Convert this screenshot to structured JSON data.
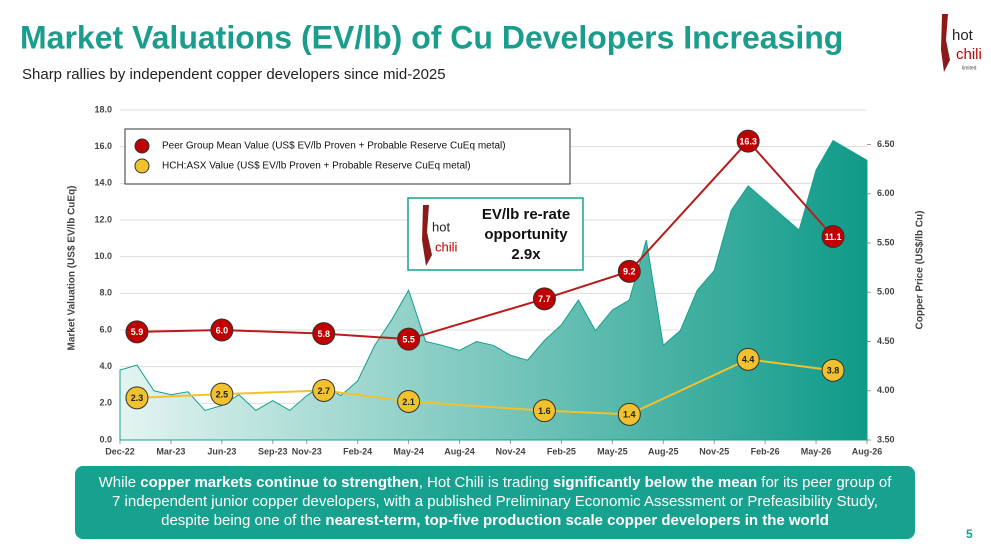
{
  "header": {
    "title": "Market Valuations (EV/lb) of Cu Developers Increasing",
    "subtitle": "Sharp rallies by independent copper developers since mid-2025",
    "logo": [
      "hot",
      "chili",
      "limited"
    ]
  },
  "chart_data": {
    "type": "line",
    "y_label": "Market Valuation (US$ EV/lb CuEq)",
    "y2_label": "Copper Price (US$/lb Cu)",
    "xlim": [
      "2022-12",
      "2026-08"
    ],
    "xticks": [
      {
        "value": "2022-12",
        "label": "Dec-22"
      },
      {
        "value": "2023-03",
        "label": "Mar-23"
      },
      {
        "value": "2023-06",
        "label": "Jun-23"
      },
      {
        "value": "2023-09",
        "label": "Sep-23"
      },
      {
        "value": "2023-11",
        "label": "Nov-23"
      },
      {
        "value": "2024-02",
        "label": "Feb-24"
      },
      {
        "value": "2024-05",
        "label": "May-24"
      },
      {
        "value": "2024-08",
        "label": "Aug-24"
      },
      {
        "value": "2024-11",
        "label": "Nov-24"
      },
      {
        "value": "2025-02",
        "label": "Feb-25"
      },
      {
        "value": "2025-05",
        "label": "May-25"
      },
      {
        "value": "2025-08",
        "label": "Aug-25"
      },
      {
        "value": "2025-11",
        "label": "Nov-25"
      },
      {
        "value": "2026-02",
        "label": "Feb-26"
      },
      {
        "value": "2026-05",
        "label": "May-26"
      },
      {
        "value": "2026-08",
        "label": "Aug-26"
      }
    ],
    "ylim": [
      0,
      18
    ],
    "yticks": [
      {
        "value": 0,
        "label": "0.0"
      },
      {
        "value": 2,
        "label": "2.0"
      },
      {
        "value": 4,
        "label": "4.0"
      },
      {
        "value": 6,
        "label": "6.0"
      },
      {
        "value": 8,
        "label": "8.0"
      },
      {
        "value": 10,
        "label": "10.0"
      },
      {
        "value": 12,
        "label": "12.0"
      },
      {
        "value": 14,
        "label": "14.0"
      },
      {
        "value": 16,
        "label": "16.0"
      },
      {
        "value": 18,
        "label": "18.0"
      }
    ],
    "y2lim": [
      3.5,
      6.85
    ],
    "y2ticks": [
      {
        "value": 3.5,
        "label": "3.50"
      },
      {
        "value": 4,
        "label": "4.00"
      },
      {
        "value": 4.5,
        "label": "4.50"
      },
      {
        "value": 5,
        "label": "5.00"
      },
      {
        "value": 5.5,
        "label": "5.50"
      },
      {
        "value": 6,
        "label": "6.00"
      },
      {
        "value": 6.5,
        "label": "6.50"
      }
    ],
    "grid": true,
    "legend": "top-left",
    "x": [
      "2023-01",
      "2023-06",
      "2023-12",
      "2024-05",
      "2025-01",
      "2025-06",
      "2026-01",
      "2026-06"
    ],
    "series": [
      {
        "name": "Peer Group Mean Value (US$ EV/lb Proven + Probable Reserve CuEq metal)",
        "color": "#c00000",
        "values": [
          5.9,
          6.0,
          5.8,
          5.5,
          7.7,
          9.2,
          16.3,
          11.1
        ],
        "value_labels": [
          "5.9",
          "6.0",
          "5.8",
          "5.5",
          "7.7",
          "9.2",
          "16.3",
          "11.1"
        ]
      },
      {
        "name": "HCH:ASX Value (US$ EV/lb Proven + Probable Reserve CuEq metal)",
        "color": "#f2c12e",
        "values": [
          2.3,
          2.5,
          2.7,
          2.1,
          1.6,
          1.4,
          4.4,
          3.8
        ],
        "value_labels": [
          "2.3",
          "2.5",
          "2.7",
          "2.1",
          "1.6",
          "1.4",
          "4.4",
          "3.8"
        ]
      }
    ],
    "area_series": {
      "axis": "y2",
      "color": "#14a08e",
      "x": [
        "2022-12",
        "2023-01",
        "2023-02",
        "2023-03",
        "2023-04",
        "2023-05",
        "2023-06",
        "2023-07",
        "2023-08",
        "2023-09",
        "2023-10",
        "2023-11",
        "2023-12",
        "2024-01",
        "2024-02",
        "2024-03",
        "2024-04",
        "2024-05",
        "2024-06",
        "2024-07",
        "2024-08",
        "2024-09",
        "2024-10",
        "2024-11",
        "2024-12",
        "2025-01",
        "2025-02",
        "2025-03",
        "2025-04",
        "2025-05",
        "2025-06",
        "2025-07",
        "2025-08",
        "2025-09",
        "2025-10",
        "2025-11",
        "2025-12",
        "2026-01",
        "2026-02",
        "2026-03",
        "2026-04",
        "2026-05",
        "2026-06",
        "2026-07",
        "2026-08"
      ],
      "values": [
        4.21,
        4.26,
        4.0,
        3.96,
        3.99,
        3.8,
        3.85,
        3.96,
        3.8,
        3.9,
        3.8,
        3.95,
        4.06,
        3.95,
        4.1,
        4.46,
        4.72,
        5.02,
        4.5,
        4.46,
        4.41,
        4.5,
        4.46,
        4.36,
        4.31,
        4.51,
        4.67,
        4.92,
        4.61,
        4.82,
        4.92,
        5.53,
        4.46,
        4.61,
        5.02,
        5.22,
        5.83,
        6.08,
        5.93,
        5.78,
        5.63,
        6.24,
        6.54,
        6.44,
        6.34
      ]
    },
    "callout": [
      "EV/lb re-rate",
      "opportunity",
      "2.9x"
    ]
  },
  "footer": [
    {
      "text": "While ",
      "bold": false
    },
    {
      "text": "copper markets continue to strengthen",
      "bold": true
    },
    {
      "text": ", Hot Chili is trading ",
      "bold": false
    },
    {
      "text": "significantly below the mean",
      "bold": true
    },
    {
      "text": " for its peer group of 7 independent junior copper developers, with a published Preliminary Economic Assessment or Prefeasibility Study, despite being one of the ",
      "bold": false
    },
    {
      "text": "nearest-term, top-five production scale copper developers in the world",
      "bold": true
    }
  ],
  "page_number": "5"
}
